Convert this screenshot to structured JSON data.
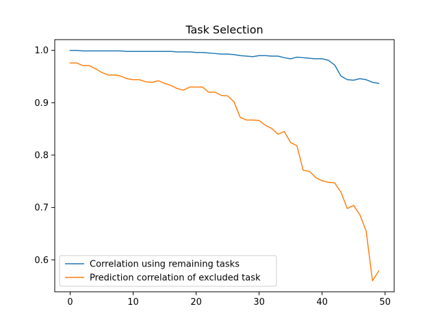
{
  "chart_data": {
    "type": "line",
    "title": "Task Selection",
    "xlabel": "",
    "ylabel": "",
    "xlim": [
      -2.45,
      51.45
    ],
    "ylim": [
      0.539,
      1.0205
    ],
    "x_ticks": [
      0,
      10,
      20,
      30,
      40,
      50
    ],
    "y_ticks": [
      0.6,
      0.7,
      0.8,
      0.9,
      1.0
    ],
    "x_tick_labels": [
      "0",
      "10",
      "20",
      "30",
      "40",
      "50"
    ],
    "y_tick_labels": [
      "0.6",
      "0.7",
      "0.8",
      "0.9",
      "1.0"
    ],
    "grid": false,
    "legend_position": "lower-left",
    "x": [
      0,
      1,
      2,
      3,
      4,
      5,
      6,
      7,
      8,
      9,
      10,
      11,
      12,
      13,
      14,
      15,
      16,
      17,
      18,
      19,
      20,
      21,
      22,
      23,
      24,
      25,
      26,
      27,
      28,
      29,
      30,
      31,
      32,
      33,
      34,
      35,
      36,
      37,
      38,
      39,
      40,
      41,
      42,
      43,
      44,
      45,
      46,
      47,
      48,
      49
    ],
    "series": [
      {
        "name": "Correlation using remaining tasks",
        "color": "#1f77b4",
        "values": [
          1.0,
          1.0,
          0.999,
          0.999,
          0.999,
          0.999,
          0.999,
          0.999,
          0.999,
          0.998,
          0.998,
          0.998,
          0.998,
          0.998,
          0.998,
          0.998,
          0.998,
          0.997,
          0.997,
          0.997,
          0.996,
          0.996,
          0.995,
          0.994,
          0.993,
          0.993,
          0.992,
          0.99,
          0.989,
          0.988,
          0.99,
          0.99,
          0.989,
          0.989,
          0.986,
          0.984,
          0.987,
          0.986,
          0.985,
          0.984,
          0.984,
          0.981,
          0.972,
          0.951,
          0.944,
          0.943,
          0.946,
          0.944,
          0.939,
          0.937
        ]
      },
      {
        "name": "Prediction correlation of excluded task",
        "color": "#ff7f0e",
        "values": [
          0.976,
          0.976,
          0.971,
          0.971,
          0.965,
          0.958,
          0.953,
          0.953,
          0.951,
          0.946,
          0.944,
          0.944,
          0.94,
          0.939,
          0.942,
          0.937,
          0.933,
          0.927,
          0.924,
          0.93,
          0.93,
          0.93,
          0.92,
          0.92,
          0.914,
          0.913,
          0.902,
          0.872,
          0.867,
          0.867,
          0.866,
          0.857,
          0.851,
          0.84,
          0.845,
          0.824,
          0.818,
          0.771,
          0.769,
          0.757,
          0.751,
          0.748,
          0.747,
          0.729,
          0.698,
          0.704,
          0.686,
          0.655,
          0.56,
          0.579
        ]
      }
    ]
  }
}
